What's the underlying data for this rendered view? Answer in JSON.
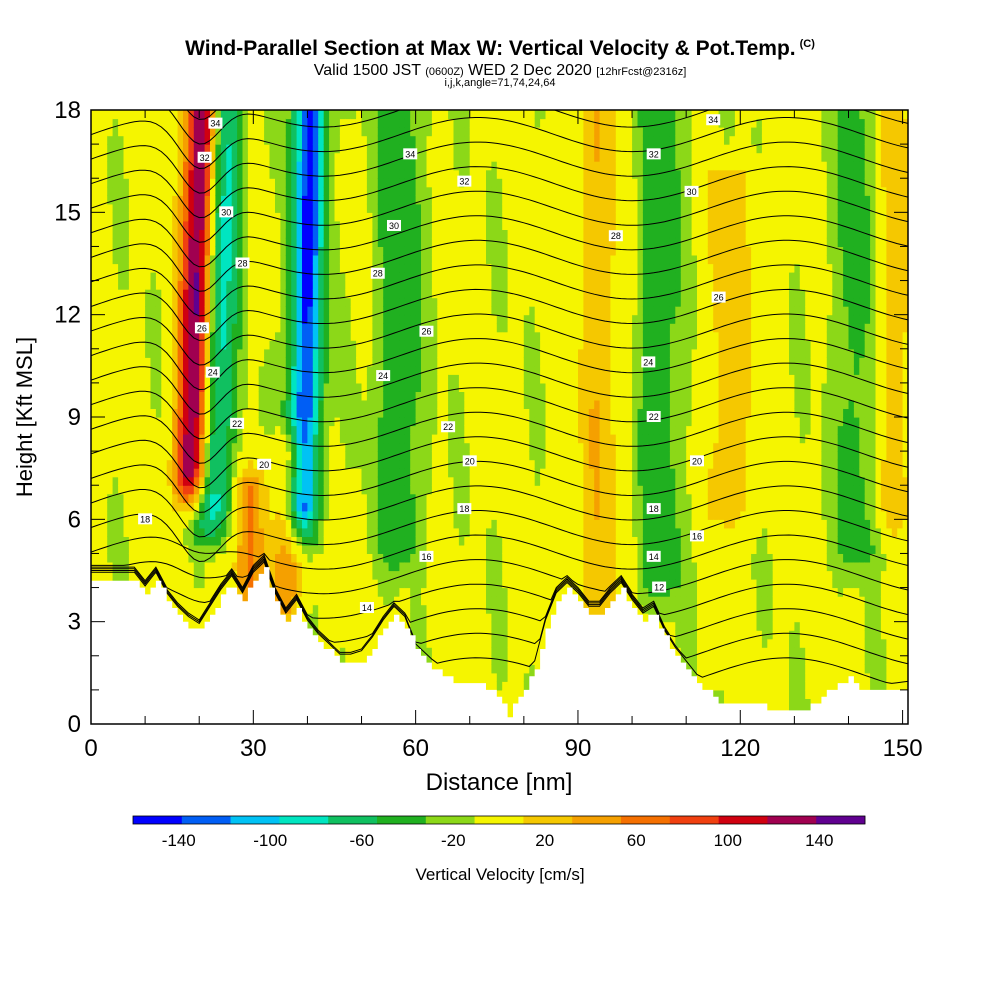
{
  "header": {
    "title": "Wind-Parallel Section at Max W: Vertical Velocity & Pot.Temp.",
    "copyright": "(C)",
    "valid_prefix": "Valid 1500 JST",
    "utc": "(0600Z)",
    "valid_date": "WED 2 Dec 2020",
    "forecast": "[12hrFcst@2316z]",
    "indices": "i,j,k,angle=71,74,24,64"
  },
  "colors": {
    "palette": [
      "#0000ff",
      "#005ef5",
      "#00c2f5",
      "#00e5c0",
      "#10c060",
      "#20b020",
      "#8cd818",
      "#f5f500",
      "#f5c800",
      "#f5a000",
      "#f57000",
      "#f04010",
      "#d00010",
      "#a00050",
      "#600090"
    ],
    "terrain": "#ffffff",
    "contour": "#000000"
  },
  "chart_data": {
    "type": "heatmap",
    "xlabel": "Distance [nm]",
    "ylabel": "Height [Kft MSL]",
    "xlim": [
      0,
      151
    ],
    "ylim": [
      0,
      18
    ],
    "x_ticks": [
      "0",
      "30",
      "60",
      "90",
      "120",
      "150"
    ],
    "y_ticks": [
      "0",
      "3",
      "6",
      "9",
      "12",
      "15",
      "18"
    ],
    "colorbar": {
      "label": "Vertical Velocity [cm/s]",
      "tick_labels": [
        "-140",
        "-100",
        "-60",
        "-20",
        "20",
        "60",
        "100",
        "140"
      ],
      "tick_values": [
        -140,
        -100,
        -60,
        -20,
        20,
        60,
        100,
        140
      ],
      "bounds": [
        -160,
        -140,
        -120,
        -100,
        -80,
        -60,
        -40,
        -20,
        0,
        20,
        40,
        60,
        80,
        100,
        120,
        140,
        160
      ]
    },
    "terrain_kft": [
      [
        0,
        4.2
      ],
      [
        8,
        4.2
      ],
      [
        10,
        3.8
      ],
      [
        12,
        4.2
      ],
      [
        14,
        3.6
      ],
      [
        16,
        3.2
      ],
      [
        18,
        2.9
      ],
      [
        20,
        2.7
      ],
      [
        22,
        3.2
      ],
      [
        24,
        3.7
      ],
      [
        26,
        4.1
      ],
      [
        28,
        3.6
      ],
      [
        30,
        4.2
      ],
      [
        32,
        4.5
      ],
      [
        34,
        3.6
      ],
      [
        36,
        3.0
      ],
      [
        38,
        3.4
      ],
      [
        40,
        2.8
      ],
      [
        42,
        2.4
      ],
      [
        44,
        2.1
      ],
      [
        46,
        1.8
      ],
      [
        48,
        1.8
      ],
      [
        50,
        1.9
      ],
      [
        52,
        2.3
      ],
      [
        54,
        2.8
      ],
      [
        56,
        3.2
      ],
      [
        58,
        2.9
      ],
      [
        60,
        2.1
      ],
      [
        62,
        1.8
      ],
      [
        64,
        1.5
      ],
      [
        66,
        1.3
      ],
      [
        68,
        1.1
      ],
      [
        70,
        1.2
      ],
      [
        72,
        1.1
      ],
      [
        74,
        0.9
      ],
      [
        76,
        0.6
      ],
      [
        77,
        0.3
      ],
      [
        78,
        0.5
      ],
      [
        80,
        1.0
      ],
      [
        82,
        1.6
      ],
      [
        84,
        2.8
      ],
      [
        86,
        3.6
      ],
      [
        88,
        3.9
      ],
      [
        90,
        3.6
      ],
      [
        92,
        3.2
      ],
      [
        94,
        3.2
      ],
      [
        96,
        3.6
      ],
      [
        98,
        3.9
      ],
      [
        100,
        3.4
      ],
      [
        102,
        3.0
      ],
      [
        104,
        3.2
      ],
      [
        106,
        2.5
      ],
      [
        108,
        2.0
      ],
      [
        110,
        1.6
      ],
      [
        112,
        1.2
      ],
      [
        114,
        0.9
      ],
      [
        116,
        0.7
      ],
      [
        120,
        0.6
      ],
      [
        124,
        0.5
      ],
      [
        126,
        0.4
      ],
      [
        128,
        0.4
      ],
      [
        132,
        0.4
      ],
      [
        134,
        0.6
      ],
      [
        136,
        1.0
      ],
      [
        140,
        1.3
      ],
      [
        142,
        1.0
      ],
      [
        146,
        0.9
      ],
      [
        151,
        1.0
      ]
    ],
    "updrafts": [
      {
        "x": 18.5,
        "z_bottom": 7,
        "z_top": 18,
        "value_cms": 160
      },
      {
        "x": 29,
        "z_bottom": 3.5,
        "z_top": 7,
        "value_cms": 60
      },
      {
        "x": 36,
        "z_bottom": 3.5,
        "z_top": 8,
        "value_cms": 60
      },
      {
        "x": 94,
        "z_bottom": 3,
        "z_top": 18,
        "value_cms": 40
      },
      {
        "x": 118,
        "z_bottom": 6,
        "z_top": 16,
        "value_cms": 40
      },
      {
        "x": 148,
        "z_bottom": 6,
        "z_top": 18,
        "value_cms": 40
      }
    ],
    "downdrafts": [
      {
        "x": 22.5,
        "z_bottom": 6,
        "z_top": 18,
        "value_cms": -100
      },
      {
        "x": 39,
        "z_bottom": 6,
        "z_top": 18,
        "value_cms": -140
      },
      {
        "x": 57,
        "z_bottom": 5,
        "z_top": 18,
        "value_cms": -40
      },
      {
        "x": 105,
        "z_bottom": 4,
        "z_top": 18,
        "value_cms": -40
      },
      {
        "x": 142,
        "z_bottom": 5,
        "z_top": 18,
        "value_cms": -40
      }
    ],
    "theta_contour_labels": [
      {
        "label": "34",
        "x": 23,
        "y": 17.6
      },
      {
        "label": "34",
        "x": 59,
        "y": 16.7
      },
      {
        "label": "34",
        "x": 115,
        "y": 17.7
      },
      {
        "label": "32",
        "x": 21,
        "y": 16.6
      },
      {
        "label": "32",
        "x": 69,
        "y": 15.9
      },
      {
        "label": "32",
        "x": 104,
        "y": 16.7
      },
      {
        "label": "30",
        "x": 25,
        "y": 15.0
      },
      {
        "label": "30",
        "x": 56,
        "y": 14.6
      },
      {
        "label": "30",
        "x": 111,
        "y": 15.6
      },
      {
        "label": "28",
        "x": 28,
        "y": 13.5
      },
      {
        "label": "28",
        "x": 53,
        "y": 13.2
      },
      {
        "label": "28",
        "x": 97,
        "y": 14.3
      },
      {
        "label": "26",
        "x": 116,
        "y": 12.5
      },
      {
        "label": "26",
        "x": 62,
        "y": 11.5
      },
      {
        "label": "26",
        "x": 20.5,
        "y": 11.6
      },
      {
        "label": "24",
        "x": 22.5,
        "y": 10.3
      },
      {
        "label": "24",
        "x": 54,
        "y": 10.2
      },
      {
        "label": "24",
        "x": 103,
        "y": 10.6
      },
      {
        "label": "22",
        "x": 27,
        "y": 8.8
      },
      {
        "label": "22",
        "x": 66,
        "y": 8.7
      },
      {
        "label": "22",
        "x": 104,
        "y": 9.0
      },
      {
        "label": "20",
        "x": 32,
        "y": 7.6
      },
      {
        "label": "20",
        "x": 70,
        "y": 7.7
      },
      {
        "label": "20",
        "x": 112,
        "y": 7.7
      },
      {
        "label": "18",
        "x": 10,
        "y": 6.0
      },
      {
        "label": "18",
        "x": 69,
        "y": 6.3
      },
      {
        "label": "18",
        "x": 104,
        "y": 6.3
      },
      {
        "label": "16",
        "x": 62,
        "y": 4.9
      },
      {
        "label": "16",
        "x": 112,
        "y": 5.5
      },
      {
        "label": "14",
        "x": 51,
        "y": 3.4
      },
      {
        "label": "14",
        "x": 104,
        "y": 4.9
      },
      {
        "label": "12",
        "x": 105,
        "y": 4.0
      }
    ]
  }
}
